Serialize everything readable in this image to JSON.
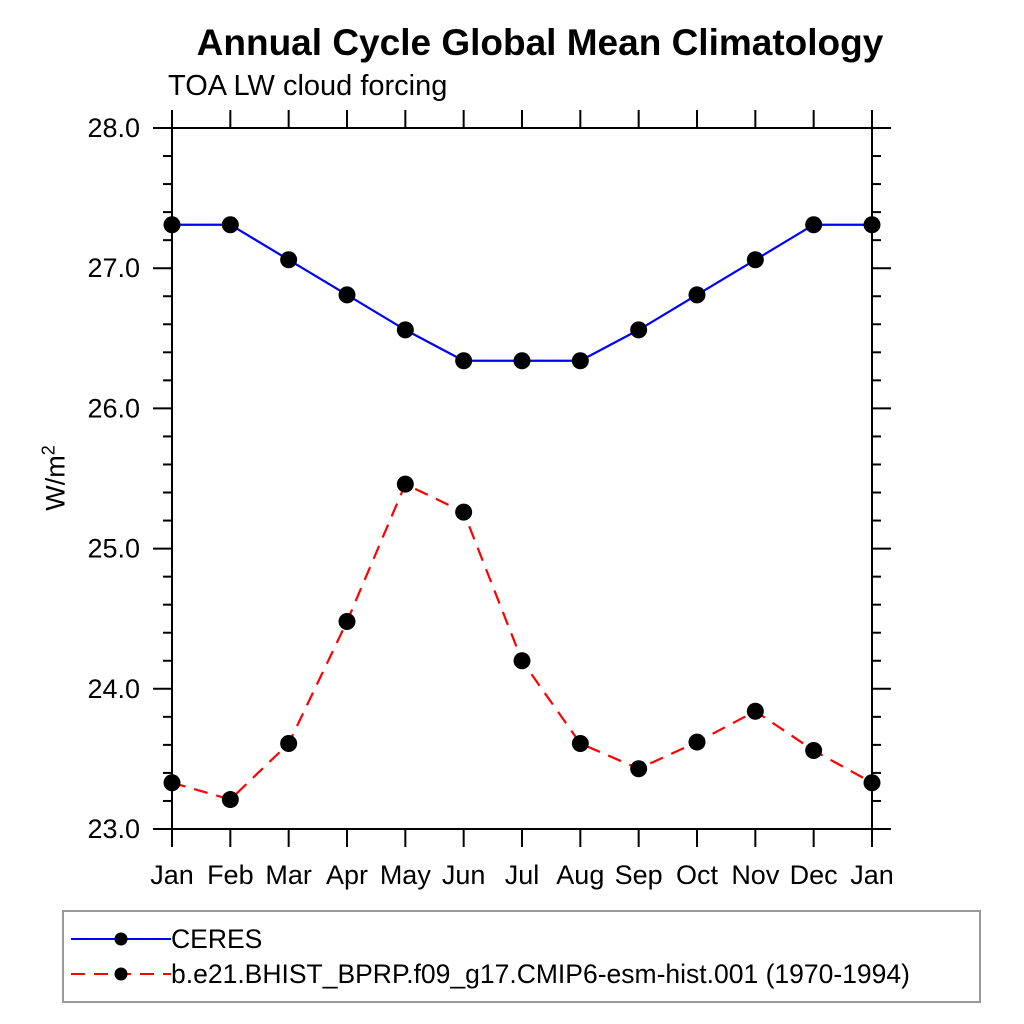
{
  "title": "Annual Cycle Global Mean Climatology",
  "subtitle": "TOA LW cloud forcing",
  "ylabel": {
    "base": "W/m",
    "sup": "2"
  },
  "chart_data": {
    "type": "line",
    "categories": [
      "Jan",
      "Feb",
      "Mar",
      "Apr",
      "May",
      "Jun",
      "Jul",
      "Aug",
      "Sep",
      "Oct",
      "Nov",
      "Dec",
      "Jan"
    ],
    "series": [
      {
        "name": "CERES",
        "color": "#0000ff",
        "line_style": "solid",
        "marker": "filled-circle",
        "marker_color": "#000000",
        "values": [
          27.31,
          27.31,
          27.06,
          26.81,
          26.56,
          26.34,
          26.34,
          26.34,
          26.56,
          26.81,
          27.06,
          27.31,
          27.31
        ]
      },
      {
        "name": "b.e21.BHIST_BPRP.f09_g17.CMIP6-esm-hist.001 (1970-1994)",
        "color": "#ff0000",
        "line_style": "dashed",
        "marker": "filled-circle",
        "marker_color": "#000000",
        "values": [
          23.33,
          23.21,
          23.61,
          24.48,
          25.46,
          25.26,
          24.2,
          23.61,
          23.43,
          23.62,
          23.84,
          23.56,
          23.33
        ]
      }
    ],
    "ylim": [
      23.0,
      28.0
    ],
    "yticks": {
      "major": [
        23,
        24,
        25,
        26,
        27,
        28
      ],
      "labels": [
        "23.0",
        "24.0",
        "25.0",
        "26.0",
        "27.0",
        "28.0"
      ],
      "minor_step": 0.2
    },
    "grid": false,
    "legend_position": "bottom-box"
  }
}
